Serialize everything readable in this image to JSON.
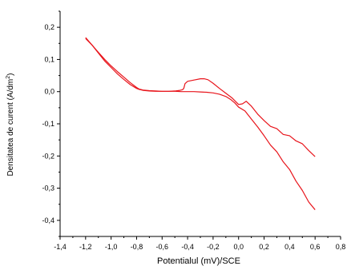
{
  "chart_data": {
    "type": "line",
    "xlabel": "Potentialul (mV)/SCE",
    "ylabel": "Densitatea de curent (A/dm",
    "ylabel_sup": "2",
    "ylabel_close": ")",
    "xlim": [
      -1.4,
      0.8
    ],
    "ylim": [
      -0.45,
      0.25
    ],
    "x_ticks": [
      -1.4,
      -1.2,
      -1.0,
      -0.8,
      -0.6,
      -0.4,
      -0.2,
      0.0,
      0.2,
      0.4,
      0.6,
      0.8
    ],
    "x_tick_labels": [
      "-1,4",
      "-1,2",
      "-1,0",
      "-0,8",
      "-0,6",
      "-0,4",
      "-0,2",
      "0,0",
      "0,2",
      "0,4",
      "0,6",
      "0,8"
    ],
    "y_ticks": [
      -0.4,
      -0.3,
      -0.2,
      -0.1,
      0.0,
      0.1,
      0.2
    ],
    "y_tick_labels": [
      "-0,4",
      "-0,3",
      "-0,2",
      "-0,1",
      "0,0",
      "0,1",
      "0,2"
    ],
    "grid": false,
    "color": "#e8141b",
    "series": [
      {
        "x": [
          -1.2,
          -1.15,
          -1.1,
          -1.05,
          -1.0,
          -0.95,
          -0.9,
          -0.85,
          -0.8,
          -0.78,
          -0.75,
          -0.7,
          -0.65,
          -0.6,
          -0.55,
          -0.5,
          -0.46,
          -0.44,
          -0.43,
          -0.42,
          -0.4,
          -0.35,
          -0.3,
          -0.27,
          -0.24,
          -0.2,
          -0.15,
          -0.1,
          -0.05,
          0.0,
          0.03,
          0.06,
          0.1,
          0.15,
          0.2,
          0.25,
          0.3,
          0.35,
          0.4,
          0.45,
          0.5,
          0.55,
          0.6
        ],
        "y": [
          0.168,
          0.145,
          0.12,
          0.095,
          0.075,
          0.055,
          0.038,
          0.022,
          0.01,
          0.007,
          0.004,
          0.002,
          0.001,
          0.001,
          0.001,
          0.002,
          0.004,
          0.006,
          0.01,
          0.025,
          0.032,
          0.036,
          0.04,
          0.04,
          0.037,
          0.026,
          0.01,
          -0.005,
          -0.02,
          -0.04,
          -0.038,
          -0.03,
          -0.045,
          -0.07,
          -0.09,
          -0.105,
          -0.118,
          -0.13,
          -0.14,
          -0.15,
          -0.165,
          -0.18,
          -0.205
        ]
      },
      {
        "x": [
          0.6,
          0.55,
          0.5,
          0.45,
          0.4,
          0.35,
          0.3,
          0.25,
          0.2,
          0.15,
          0.1,
          0.05,
          0.0,
          -0.03,
          -0.06,
          -0.1,
          -0.15,
          -0.2,
          -0.25,
          -0.3,
          -0.35,
          -0.4,
          -0.45,
          -0.5,
          -0.55,
          -0.6,
          -0.65,
          -0.7,
          -0.75,
          -0.78,
          -0.8,
          -0.85,
          -0.9,
          -0.95,
          -1.0,
          -1.05,
          -1.1,
          -1.15,
          -1.2
        ],
        "y": [
          -0.37,
          -0.34,
          -0.31,
          -0.275,
          -0.245,
          -0.215,
          -0.19,
          -0.163,
          -0.137,
          -0.11,
          -0.085,
          -0.06,
          -0.048,
          -0.035,
          -0.025,
          -0.015,
          -0.008,
          -0.004,
          -0.002,
          -0.001,
          0.0,
          0.0,
          0.0,
          0.001,
          0.001,
          0.001,
          0.002,
          0.003,
          0.005,
          0.008,
          0.013,
          0.028,
          0.045,
          0.062,
          0.08,
          0.1,
          0.122,
          0.145,
          0.165
        ]
      }
    ]
  }
}
